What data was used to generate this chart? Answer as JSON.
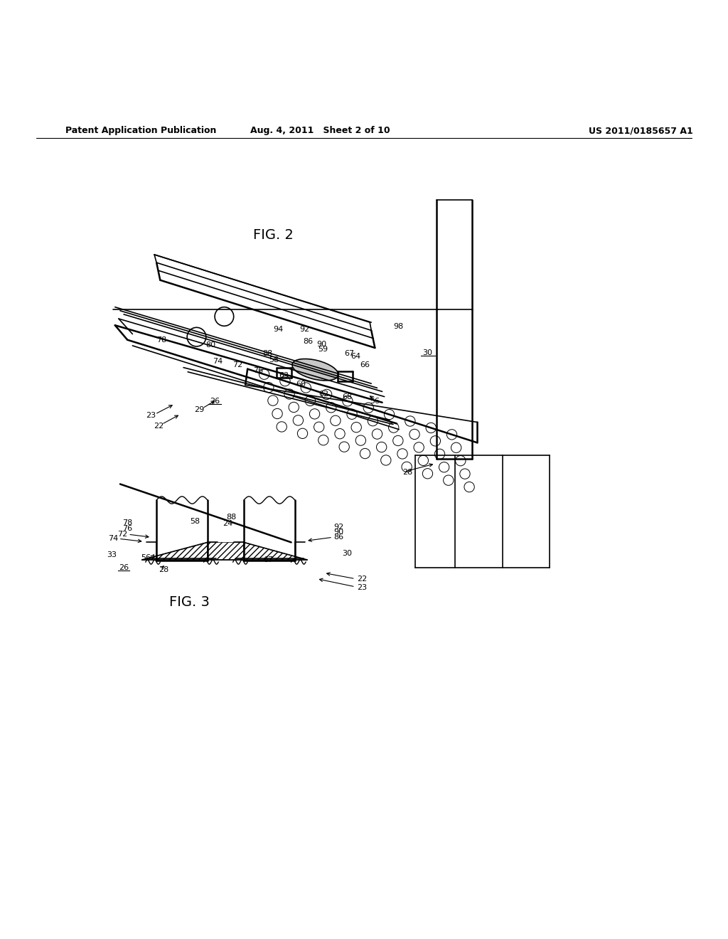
{
  "bg_color": "#ffffff",
  "line_color": "#000000",
  "header_left": "Patent Application Publication",
  "header_mid": "Aug. 4, 2011   Sheet 2 of 10",
  "header_right": "US 2011/0185657 A1",
  "fig2_label": "FIG. 2",
  "fig3_label": "FIG. 3"
}
